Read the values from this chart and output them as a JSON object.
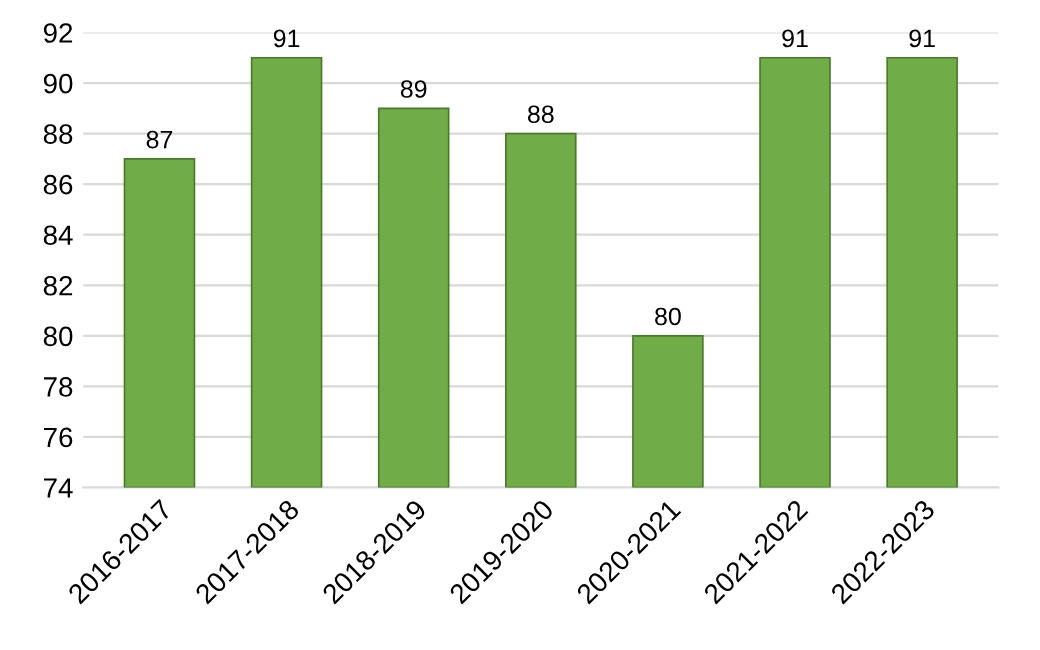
{
  "chart_data": {
    "type": "bar",
    "categories": [
      "2016-2017",
      "2017-2018",
      "2018-2019",
      "2019-2020",
      "2020-2021",
      "2021-2022",
      "2022-2023"
    ],
    "values": [
      87,
      91,
      89,
      88,
      80,
      91,
      91
    ],
    "color": "#70ad47",
    "ylim": [
      74,
      92
    ],
    "yticks": [
      74,
      76,
      78,
      80,
      82,
      84,
      86,
      88,
      90,
      92
    ],
    "grid": "y",
    "data_labels": true
  }
}
